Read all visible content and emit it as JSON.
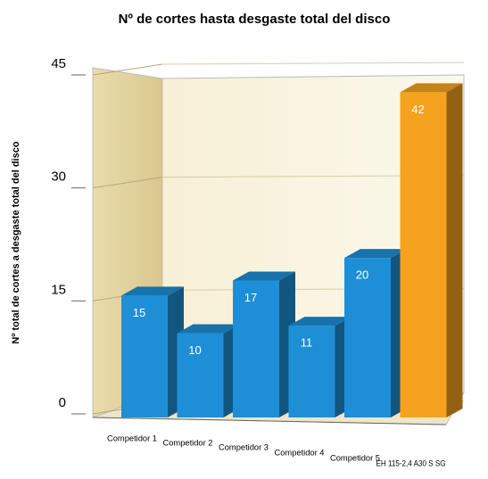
{
  "chart_data": {
    "type": "bar3d",
    "title": "Nº de cortes hasta desgaste total del disco",
    "y_label": "Nº total de cortes a desgaste total del disco",
    "categories": [
      "Competidor 1",
      "Competidor 2",
      "Competidor 3",
      "Competidor 4",
      "Competidor 5",
      "EH 115-2,4 A30 S SG"
    ],
    "values": [
      15,
      10,
      17,
      11,
      20,
      42
    ],
    "colors": [
      "#1e8fd6",
      "#1e8fd6",
      "#1e8fd6",
      "#1e8fd6",
      "#1e8fd6",
      "#f5a21e"
    ],
    "ylim": [
      0,
      45
    ],
    "yticks": [
      0,
      15,
      30,
      45
    ],
    "grid": true
  }
}
